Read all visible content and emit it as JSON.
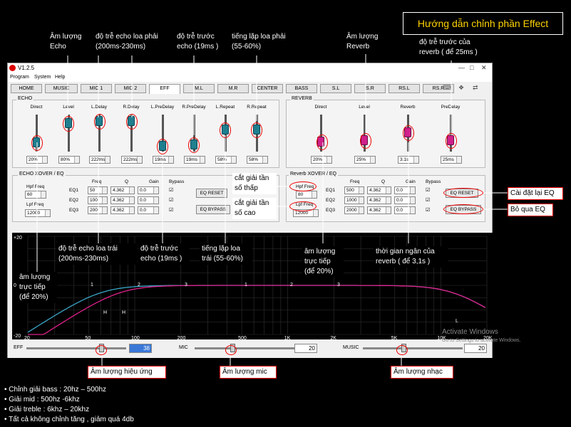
{
  "page_title": "Hướng dẫn chỉnh phần Effect",
  "app": {
    "version": "V1.2.5",
    "menu": [
      "Program",
      "System",
      "Help"
    ],
    "tabs": [
      "HOME",
      "MUSIC",
      "MIC 1",
      "MIC 2",
      "EFF",
      "M.L",
      "M.R",
      "CENTER",
      "BASS",
      "S.L",
      "S.R",
      "RS.L",
      "RS.R"
    ],
    "active_tab": "EFF"
  },
  "echo": {
    "title": "ECHO",
    "sliders": [
      {
        "label": "Direct",
        "value": "20%"
      },
      {
        "label": "Level",
        "value": "80%"
      },
      {
        "label": "L.Delay",
        "value": "222ms"
      },
      {
        "label": "R.Delay",
        "value": "222ms"
      },
      {
        "label": "L.PreDelay",
        "value": "19ms"
      },
      {
        "label": "R.PreDelay",
        "value": "19ms"
      },
      {
        "label": "L.Repeat",
        "value": "58%"
      },
      {
        "label": "R.Repeat",
        "value": "58%"
      }
    ]
  },
  "reverb": {
    "title": "REVERB",
    "sliders": [
      {
        "label": "Direct",
        "value": "20%"
      },
      {
        "label": "Level",
        "value": "25%"
      },
      {
        "label": "Reverb",
        "value": "3.1s"
      },
      {
        "label": "PreDelay",
        "value": "25ms"
      }
    ]
  },
  "echo_eq": {
    "title": "ECHO  XOVER / EQ",
    "hpf_label": "Hpf Freq",
    "hpf_value": "60",
    "lpf_label": "Lpf Freq",
    "lpf_value": "12000",
    "col_freq": "Freq",
    "col_q": "Q",
    "col_gain": "Gain",
    "col_bypass": "Bypass",
    "rows": [
      {
        "name": "EQ1",
        "freq": "50",
        "q": "4.362",
        "gain": "0.0"
      },
      {
        "name": "EQ2",
        "freq": "100",
        "q": "4.362",
        "gain": "0.0"
      },
      {
        "name": "EQ3",
        "freq": "200",
        "q": "4.362",
        "gain": "0.0"
      }
    ],
    "reset_label": "EQ RESET",
    "bypass_label": "EQ BYPASS"
  },
  "reverb_eq": {
    "title": "Reverb  XOVER / EQ",
    "hpf_label": "Hpf Freq",
    "hpf_value": "80",
    "lpf_label": "Lpf Freq",
    "lpf_value": "12000",
    "col_freq": "Freq",
    "col_q": "Q",
    "col_gain": "Gain",
    "col_bypass": "Bypass",
    "rows": [
      {
        "name": "EQ1",
        "freq": "500",
        "q": "4.362",
        "gain": "0.0"
      },
      {
        "name": "EQ2",
        "freq": "1000",
        "q": "4.362",
        "gain": "0.0"
      },
      {
        "name": "EQ3",
        "freq": "2000",
        "q": "4.362",
        "gain": "0.0"
      }
    ],
    "reset_label": "EQ RESET",
    "bypass_label": "EQ BYPASS"
  },
  "graph": {
    "y_top": "+20",
    "y_mid": "0",
    "y_bottom": "-20",
    "x_labels": [
      "20",
      "50",
      "100",
      "200",
      "500",
      "1K",
      "2K",
      "5K",
      "10K",
      "20K"
    ],
    "markers_left": [
      "1",
      "2",
      "3"
    ],
    "markers_right": [
      "1",
      "2",
      "3"
    ],
    "h_markers": [
      "H",
      "H"
    ],
    "l_marker": "L"
  },
  "bottom": {
    "eff_label": "EFF",
    "eff_value": "38",
    "mic_label": "MIC",
    "mic_value": "20",
    "music_label": "MUSIC",
    "music_value": "20"
  },
  "annotations": {
    "echo_level": "Âm lượng Echo",
    "echo_delay_right": "độ trễ echo loa phải (200ms-230ms)",
    "predelay_right": "độ trễ trước echo (19ms )",
    "repeat_right": "tiếng lặp loa phải (55-60%)",
    "reverb_level": "Âm lượng Reverb",
    "reverb_predelay": "độ trễ trước của reverb ( để 25ms )",
    "hpf_note": "cắt giải tần số thấp",
    "lpf_note": "cắt giải tần số cao",
    "eq_reset_note": "Cài đặt lại EQ",
    "eq_bypass_note": "Bỏ qua EQ",
    "echo_delay_left": "độ trễ echo loa trái (200ms-230ms)",
    "predelay_left": "độ trễ trước echo (19ms )",
    "repeat_left": "tiếng lặp loa trái (55-60%)",
    "reverb_direct": "âm lượng trực tiếp (để 20%)",
    "reverb_time": "thời gian ngân của reverb ( để 3,1s )",
    "echo_direct": "âm lượng trực tiếp (để 20%)",
    "eff_volume": "Âm lượng hiệu ứng",
    "mic_volume": "Âm lượng mic",
    "music_volume": "Âm lượng nhạc"
  },
  "notes": [
    "• Chỉnh giải bass : 20hz – 500hz",
    "• Giải mid : 500hz -6khz",
    "• Giải treble : 6khz – 20khz",
    "• Tất cả không chỉnh tăng , giảm quá 4db"
  ],
  "watermark": {
    "line1": "Activate Windows",
    "line2": "Go to Settings to activate Windows."
  }
}
